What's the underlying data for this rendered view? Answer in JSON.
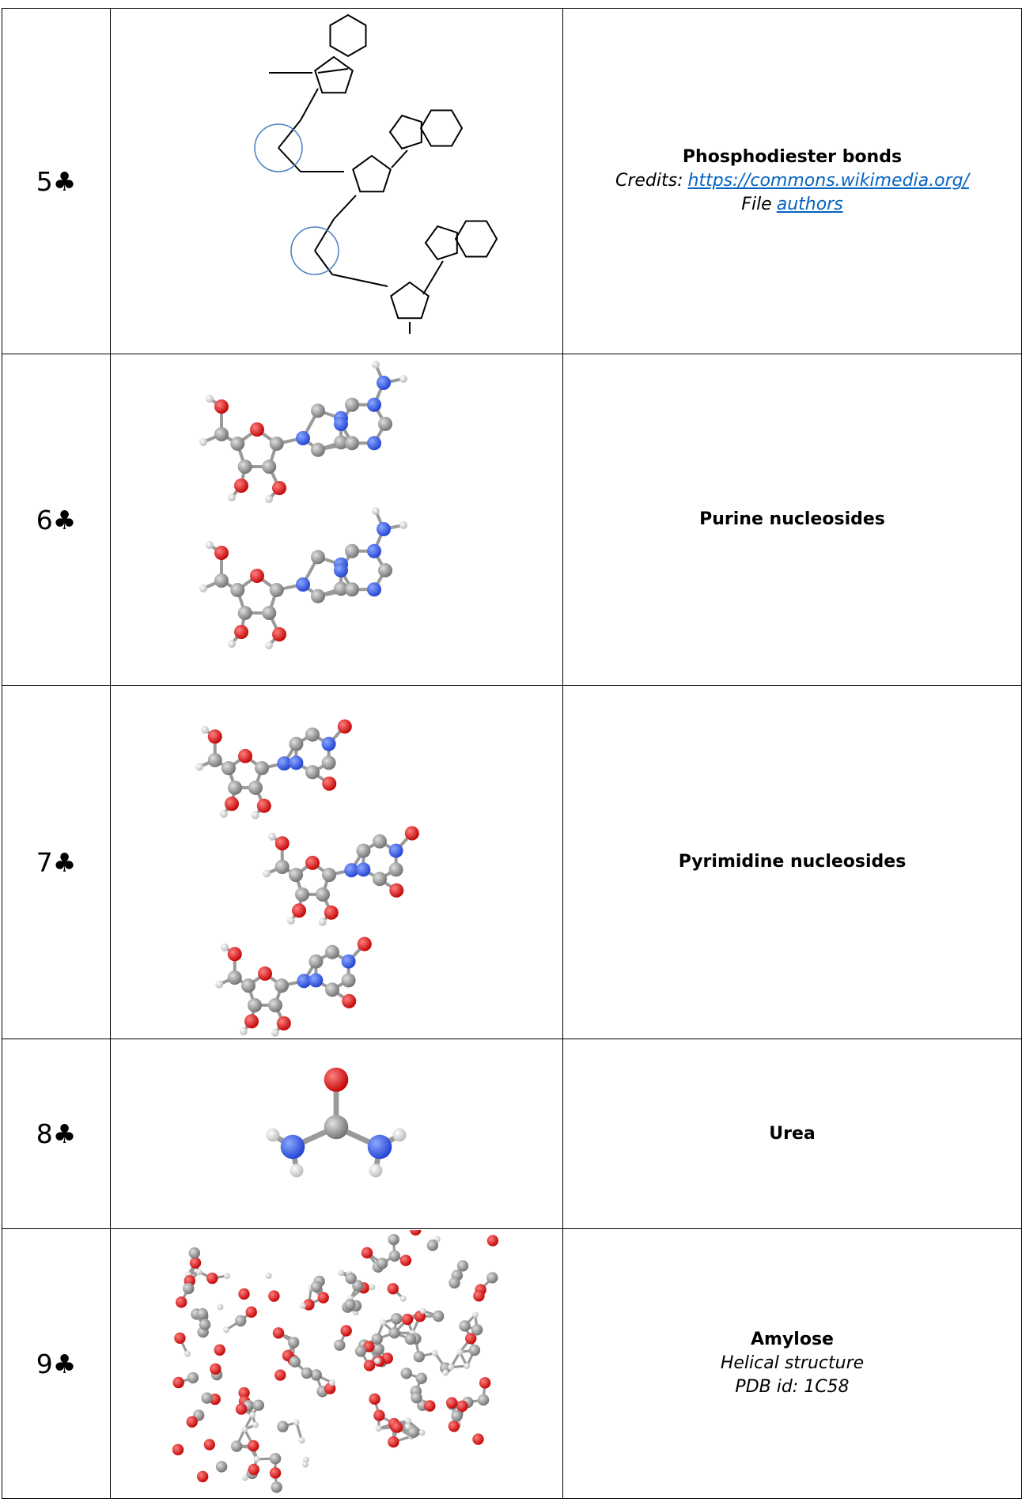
{
  "table": {
    "rows": [
      {
        "number": "5♣",
        "title": "Phosphodiester bonds",
        "lines": [
          [
            {
              "text": "Credits:"
            },
            {
              "text": "https://commons.wikimedia.org/",
              "link": true
            }
          ],
          [
            {
              "text": "File"
            },
            {
              "text": "authors",
              "link": true
            }
          ]
        ]
      },
      {
        "number": "6♣",
        "title": "Purine nucleosides",
        "lines": []
      },
      {
        "number": "7♣",
        "title": "Pyrimidine nucleosides",
        "lines": []
      },
      {
        "number": "8♣",
        "title": "Urea",
        "lines": []
      },
      {
        "number": "9♣",
        "title": "Amylose",
        "lines": [
          [
            {
              "text": "Helical structure"
            }
          ],
          [
            {
              "text": "PDB id: 1C58"
            }
          ]
        ]
      }
    ]
  }
}
